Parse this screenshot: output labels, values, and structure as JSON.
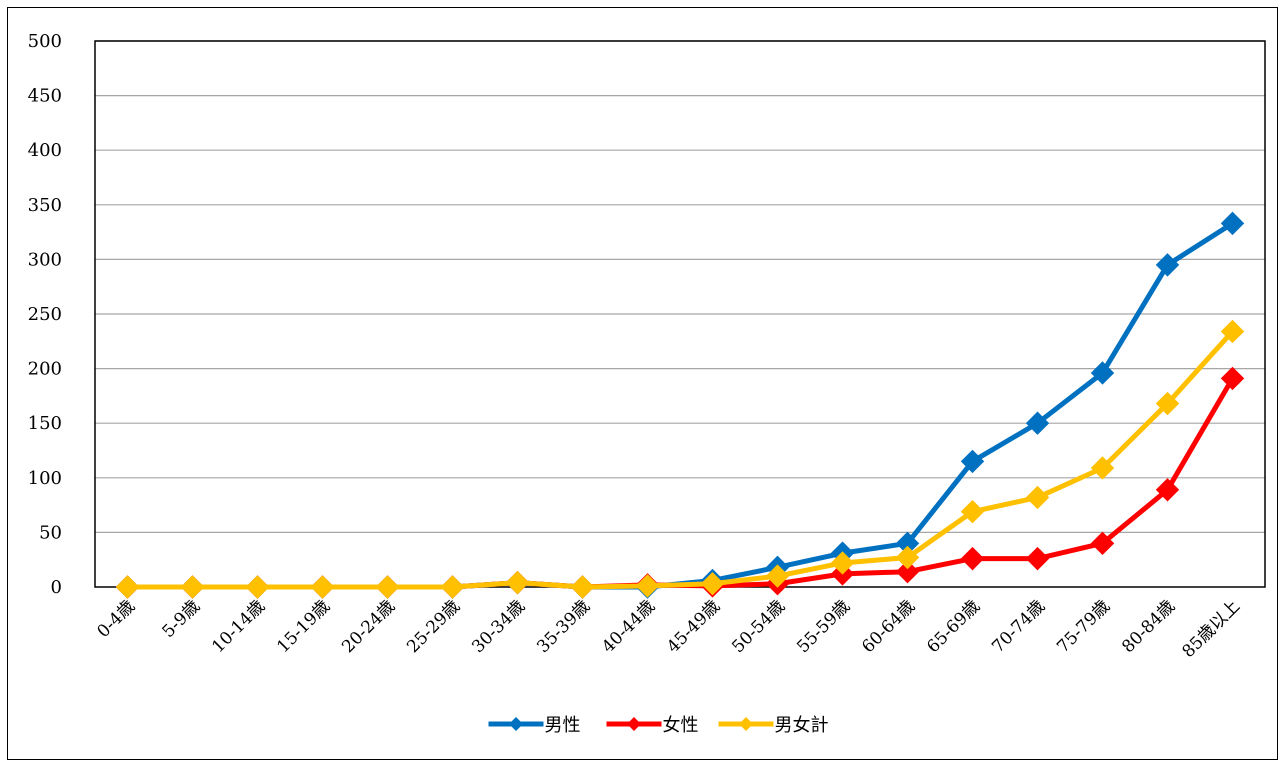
{
  "chart_data": {
    "type": "line",
    "title": "",
    "xlabel": "",
    "ylabel": "",
    "ylim": [
      0,
      500
    ],
    "yticks": [
      0,
      50,
      100,
      150,
      200,
      250,
      300,
      350,
      400,
      450,
      500
    ],
    "grid": true,
    "legend_position": "bottom",
    "categories": [
      "0-4歳",
      "5-9歳",
      "10-14歳",
      "15-19歳",
      "20-24歳",
      "25-29歳",
      "30-34歳",
      "35-39歳",
      "40-44歳",
      "45-49歳",
      "50-54歳",
      "55-59歳",
      "60-64歳",
      "65-69歳",
      "70-74歳",
      "75-79歳",
      "80-84歳",
      "85歳以上"
    ],
    "series": [
      {
        "name": "男性",
        "color": "#0070C0",
        "values": [
          0,
          0,
          0,
          0,
          0,
          0,
          4,
          0,
          0,
          6,
          18,
          31,
          40,
          115,
          150,
          196,
          295,
          333
        ]
      },
      {
        "name": "女性",
        "color": "#FF0000",
        "values": [
          0,
          0,
          0,
          0,
          0,
          0,
          4,
          0,
          2,
          1,
          3,
          12,
          14,
          26,
          26,
          40,
          89,
          191
        ]
      },
      {
        "name": "男女計",
        "color": "#FFC000",
        "values": [
          0,
          0,
          0,
          0,
          0,
          0,
          4,
          0,
          1,
          3,
          10,
          22,
          27,
          69,
          82,
          109,
          168,
          234
        ]
      }
    ]
  }
}
